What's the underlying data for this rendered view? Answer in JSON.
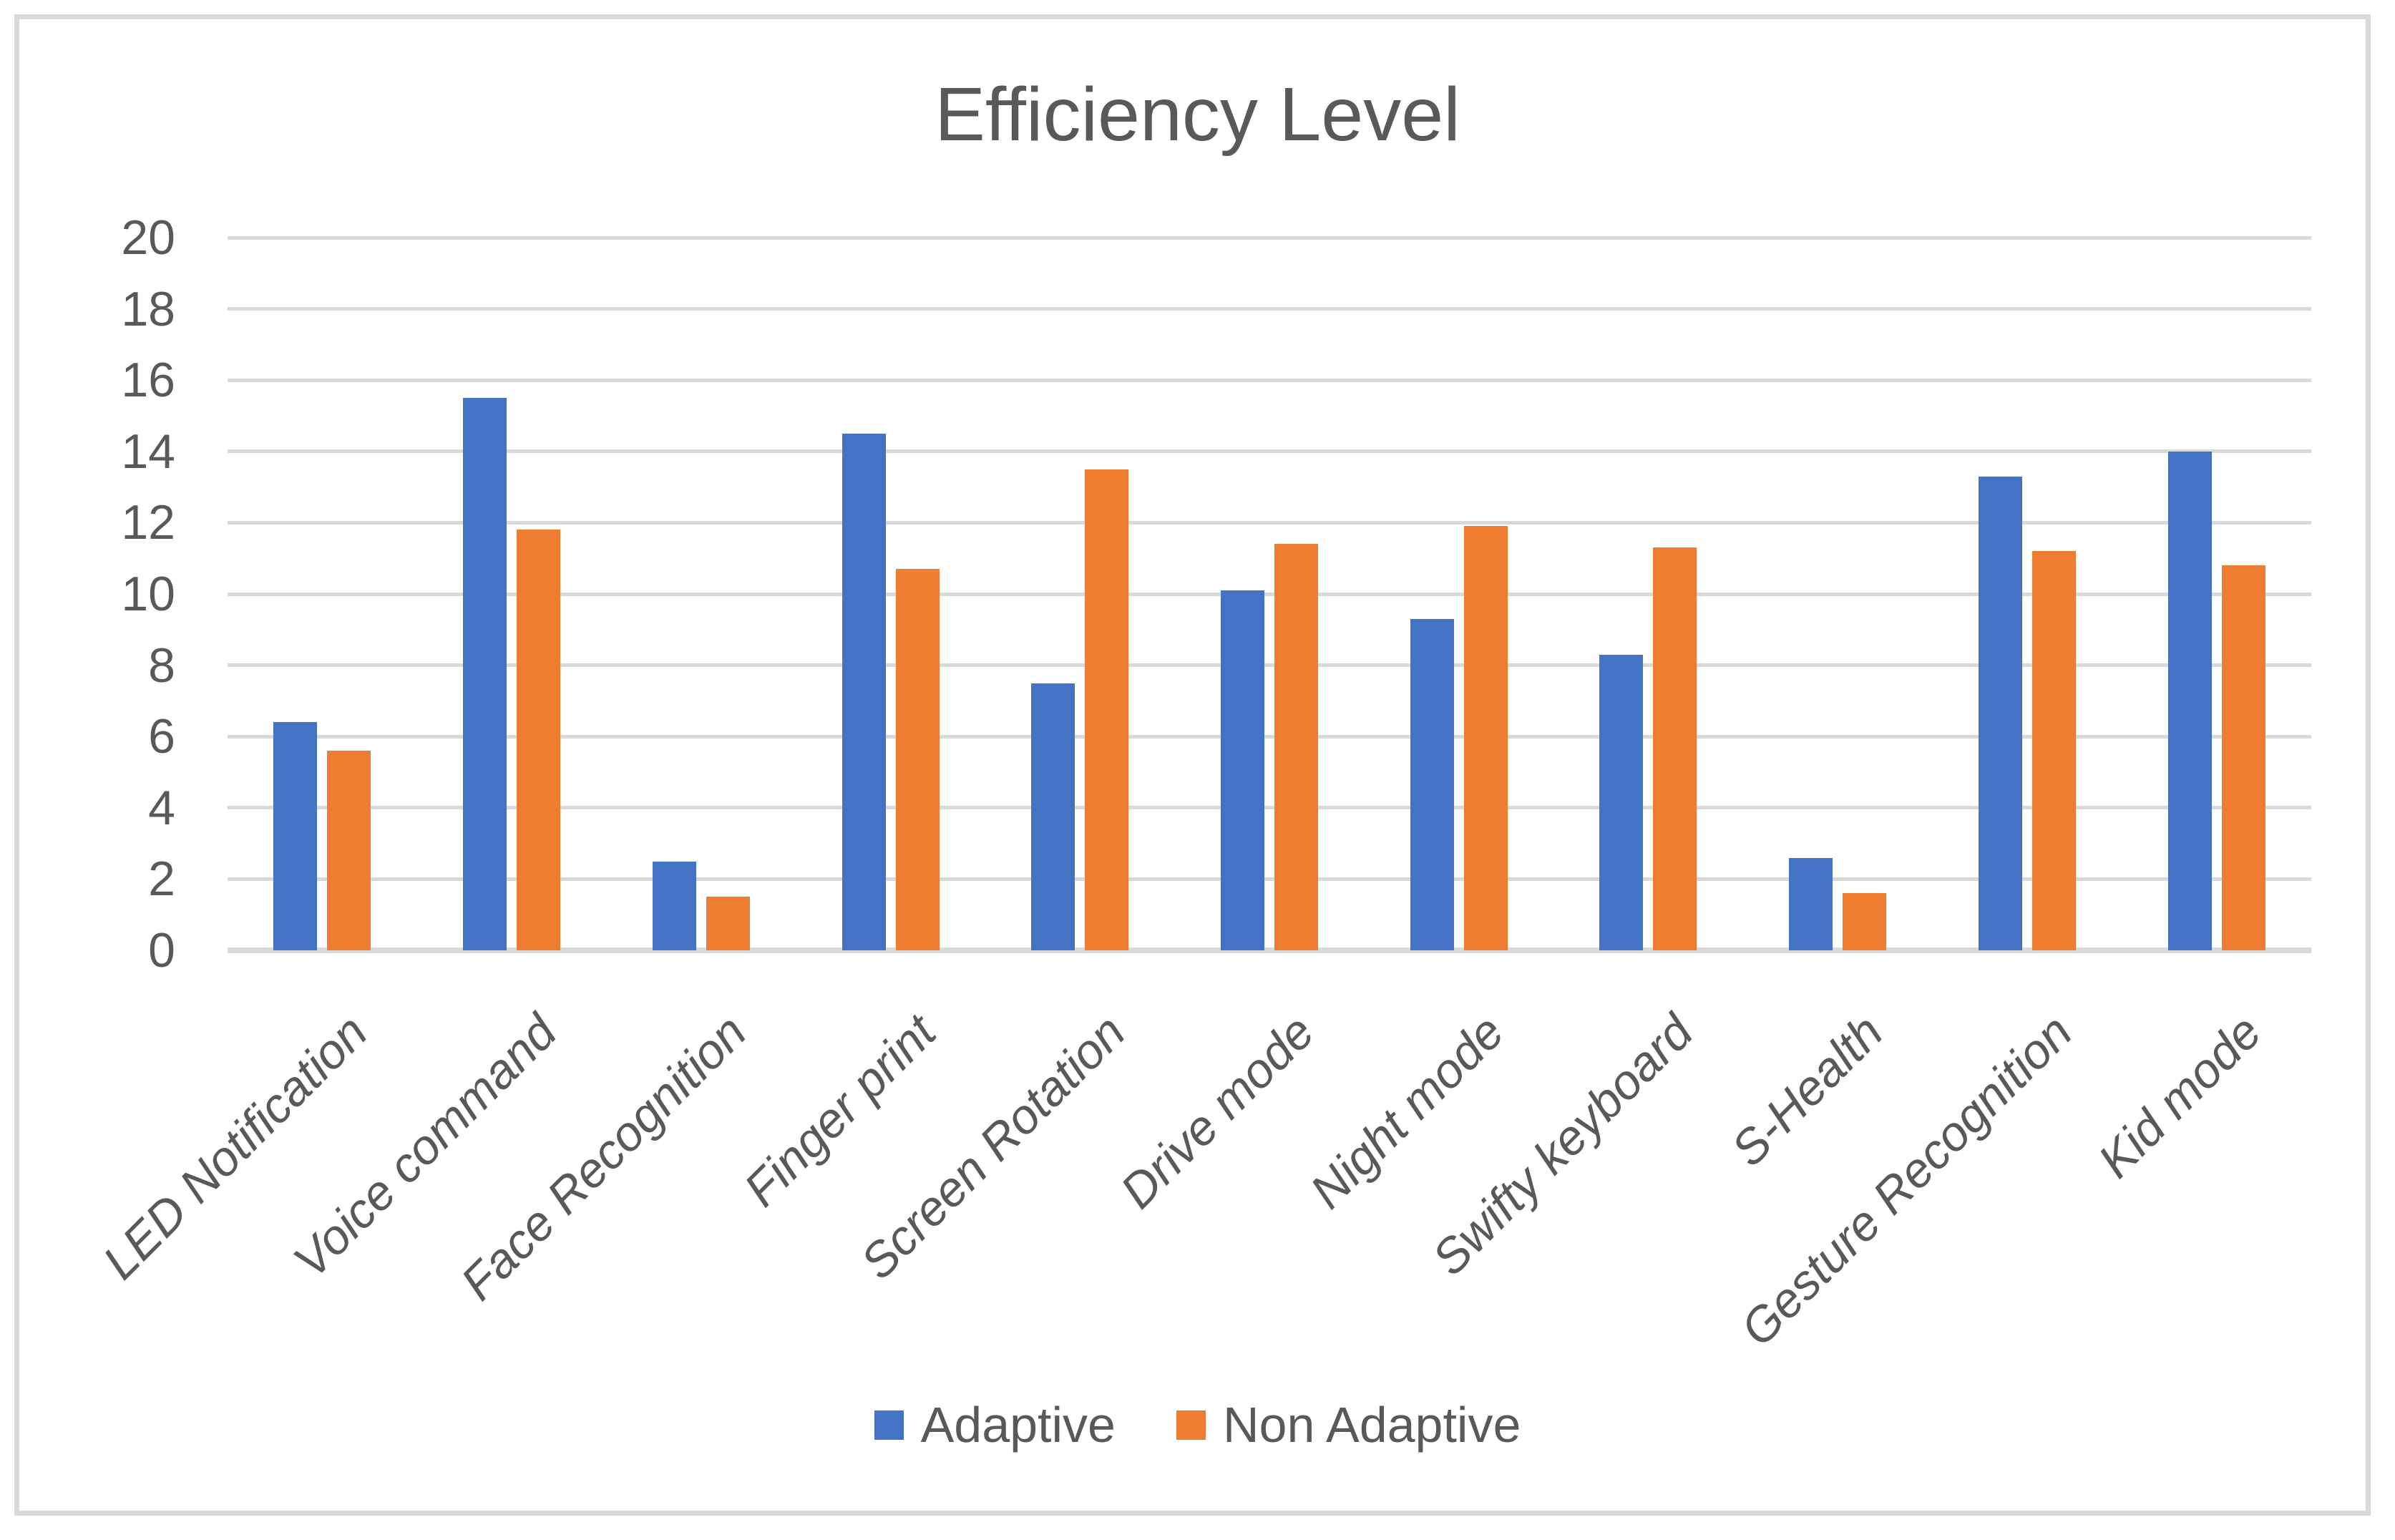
{
  "title": "Efficiency Level",
  "legend": [
    {
      "label": "Adaptive",
      "color": "#4472C4"
    },
    {
      "label": "Non Adaptive",
      "color": "#ED7D31"
    }
  ],
  "colors": {
    "text": "#595959",
    "gridline": "#D9D9D9",
    "axis_line": "#D9D9D9",
    "background": "#FFFFFF",
    "frame_border": "#D9D9D9",
    "adaptive": "#4472C4",
    "non_adaptive": "#ED7D31"
  },
  "y_axis": {
    "ticks": [
      "0",
      "2",
      "4",
      "6",
      "8",
      "10",
      "12",
      "14",
      "16",
      "18",
      "20"
    ]
  },
  "chart_data": {
    "type": "bar",
    "title": "Efficiency Level",
    "categories": [
      "LED Notification",
      "Voice command",
      "Face Recognition",
      "Finger print",
      "Screen Rotation",
      "Drive mode",
      "Night mode",
      "Swifty keyboard",
      "S-Health",
      "Gesture Recognition",
      "Kid mode"
    ],
    "series": [
      {
        "name": "Adaptive",
        "color": "#4472C4",
        "values": [
          6.4,
          15.5,
          2.5,
          14.5,
          7.5,
          10.1,
          9.3,
          8.3,
          2.6,
          13.3,
          14.0
        ]
      },
      {
        "name": "Non Adaptive",
        "color": "#ED7D31",
        "values": [
          5.6,
          11.8,
          1.5,
          10.7,
          13.5,
          11.4,
          11.9,
          11.3,
          1.6,
          11.2,
          10.8
        ]
      }
    ],
    "xlabel": "",
    "ylabel": "",
    "ylim": [
      0,
      20
    ],
    "ytick_step": 2,
    "grid": true,
    "legend_position": "bottom"
  }
}
